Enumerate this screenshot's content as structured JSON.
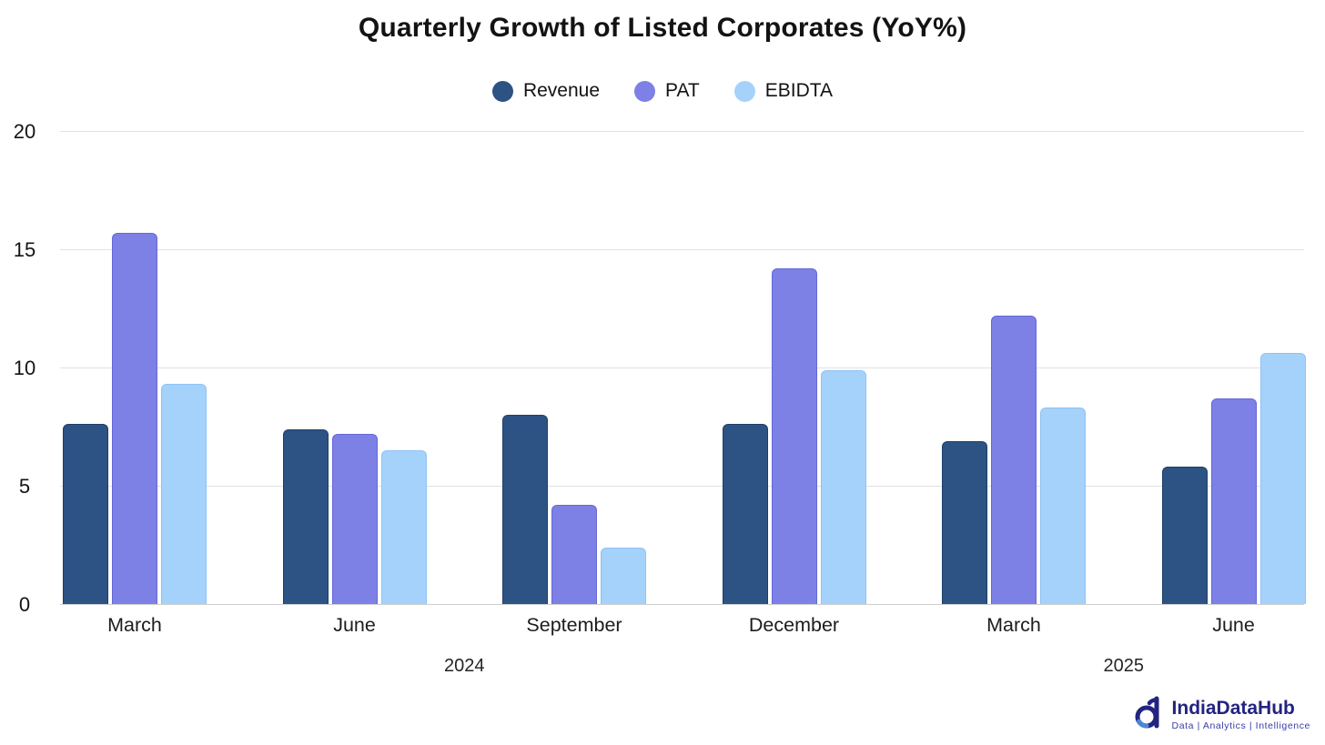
{
  "title": "Quarterly Growth of Listed Corporates (YoY%)",
  "chart_data": {
    "type": "bar",
    "title": "Quarterly Growth of Listed Corporates (YoY%)",
    "categories": [
      "March",
      "June",
      "September",
      "December",
      "March",
      "June"
    ],
    "year_groups": [
      {
        "label": "2024",
        "span": [
          0,
          3
        ]
      },
      {
        "label": "2025",
        "span": [
          4,
          5
        ]
      }
    ],
    "series": [
      {
        "name": "Revenue",
        "color": "#2d5284",
        "border_color": "#1e3f66",
        "values": [
          7.6,
          7.4,
          8.0,
          7.6,
          6.9,
          5.8
        ]
      },
      {
        "name": "PAT",
        "color": "#7d81e5",
        "border_color": "#6468d6",
        "values": [
          15.7,
          7.2,
          4.2,
          14.2,
          12.2,
          8.7
        ]
      },
      {
        "name": "EBIDTA",
        "color": "#a5d2fb",
        "border_color": "#8ec2f3",
        "values": [
          9.3,
          6.5,
          2.4,
          9.9,
          8.3,
          10.6
        ]
      }
    ],
    "ylim": [
      0,
      20
    ],
    "yticks": [
      0,
      5,
      10,
      15,
      20
    ],
    "grid": true,
    "legend_position": "top",
    "xlabel": "",
    "ylabel": ""
  },
  "logo": {
    "brand": "IndiaDataHub",
    "tagline": "Data | Analytics | Intelligence",
    "brand_color": "#232380",
    "accent_color": "#4a87d8"
  }
}
